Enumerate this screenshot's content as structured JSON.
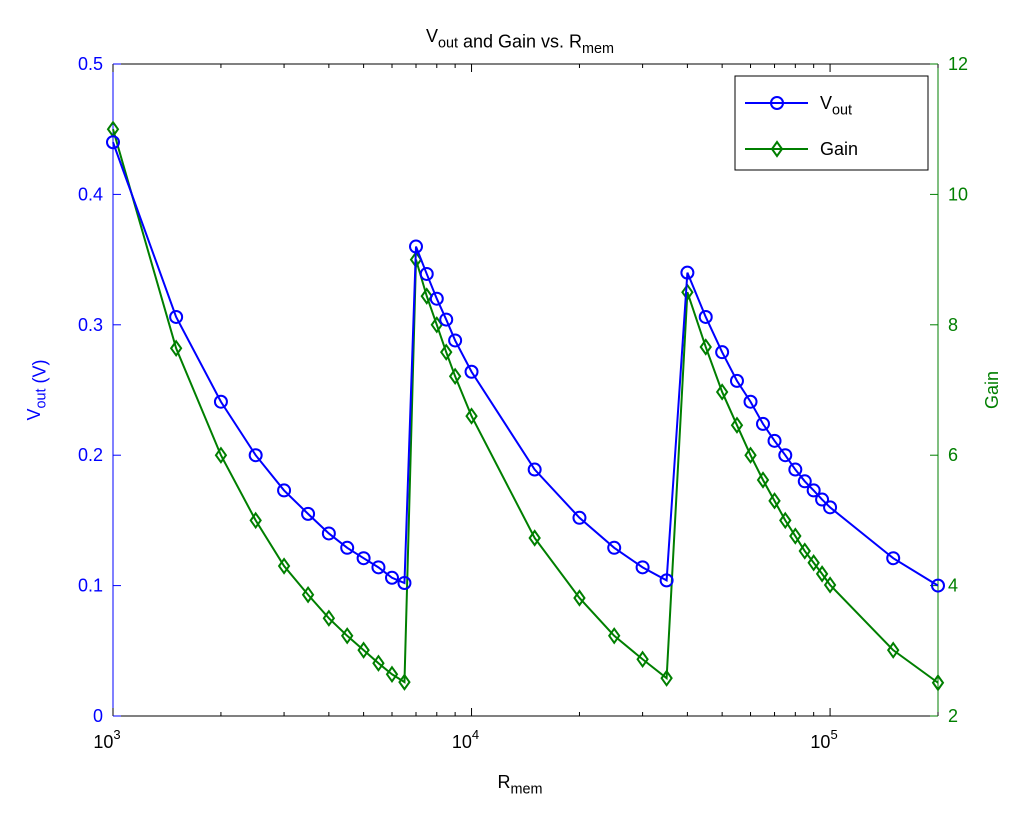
{
  "chart_data": {
    "type": "line",
    "title_parts": [
      {
        "t": "V"
      },
      {
        "t": "out",
        "sub": true
      },
      {
        "t": " and Gain vs. R"
      },
      {
        "t": "mem",
        "sub": true
      }
    ],
    "xlabel_parts": [
      {
        "t": "R"
      },
      {
        "t": "mem",
        "sub": true
      }
    ],
    "ylabel_left_parts": [
      {
        "t": "V"
      },
      {
        "t": "out",
        "sub": true
      },
      {
        "t": " (V)"
      }
    ],
    "ylabel_right": "Gain",
    "xscale": "log",
    "xlim": [
      1000,
      200000
    ],
    "ylim_left": [
      0,
      0.5
    ],
    "ylim_right": [
      2,
      12
    ],
    "xticks": [
      {
        "base": "10",
        "exp": "3",
        "value": 1000
      },
      {
        "base": "10",
        "exp": "4",
        "value": 10000
      },
      {
        "base": "10",
        "exp": "5",
        "value": 100000
      }
    ],
    "yticks_left": [
      "0",
      "0.1",
      "0.2",
      "0.3",
      "0.4",
      "0.5"
    ],
    "yticks_right": [
      "2",
      "4",
      "6",
      "8",
      "10",
      "12"
    ],
    "grid": false,
    "legend_position": "top-right",
    "colors": {
      "vout": "#0000ff",
      "gain": "#007f00"
    },
    "x": [
      1000,
      1500,
      2000,
      2500,
      3000,
      3500,
      4000,
      4500,
      5000,
      5500,
      6000,
      6500,
      7000,
      7500,
      8000,
      8500,
      9000,
      10000,
      15000,
      20000,
      25000,
      30000,
      35000,
      40000,
      45000,
      50000,
      55000,
      60000,
      65000,
      70000,
      75000,
      80000,
      85000,
      90000,
      95000,
      100000,
      150000,
      200000
    ],
    "series": [
      {
        "name_parts": [
          {
            "t": "V"
          },
          {
            "t": "out",
            "sub": true
          }
        ],
        "axis": "left",
        "marker": "circle",
        "values": [
          0.44,
          0.306,
          0.241,
          0.2,
          0.173,
          0.155,
          0.14,
          0.129,
          0.121,
          0.114,
          0.106,
          0.102,
          0.36,
          0.339,
          0.32,
          0.304,
          0.288,
          0.264,
          0.189,
          0.152,
          0.129,
          0.114,
          0.104,
          0.34,
          0.306,
          0.279,
          0.257,
          0.241,
          0.224,
          0.211,
          0.2,
          0.189,
          0.18,
          0.173,
          0.166,
          0.16,
          0.121,
          0.1
        ]
      },
      {
        "name_parts": [
          {
            "t": "Gain"
          }
        ],
        "axis": "right",
        "marker": "diamond",
        "values": [
          11,
          7.64,
          6,
          5,
          4.3,
          3.86,
          3.5,
          3.23,
          3.01,
          2.81,
          2.64,
          2.52,
          9,
          8.44,
          8,
          7.58,
          7.21,
          6.6,
          4.73,
          3.81,
          3.23,
          2.87,
          2.58,
          8.5,
          7.66,
          6.97,
          6.46,
          6,
          5.62,
          5.3,
          5,
          4.76,
          4.53,
          4.35,
          4.18,
          4.01,
          3.01,
          2.51
        ]
      }
    ]
  }
}
